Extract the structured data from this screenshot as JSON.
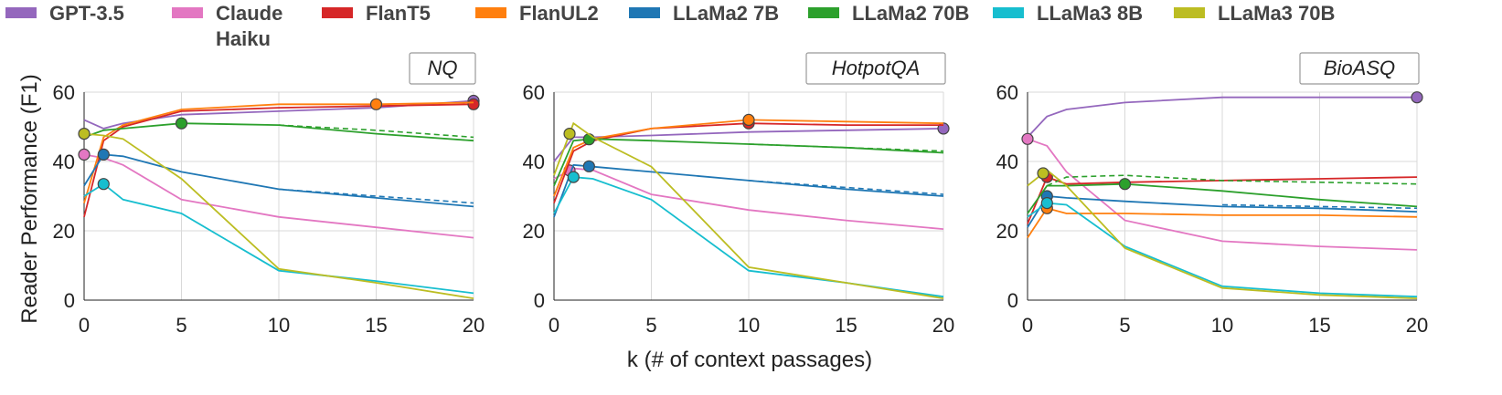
{
  "chart_data": {
    "type": "line",
    "xlabel": "k (# of context passages)",
    "ylabel": "Reader Performance (F1)",
    "xlim": [
      0,
      20
    ],
    "ylim": [
      0,
      60
    ],
    "xticks": [
      "0",
      "5",
      "10",
      "15",
      "20"
    ],
    "yticks": [
      "0",
      "20",
      "40",
      "60"
    ],
    "legend": [
      {
        "name": "GPT-3.5",
        "color": "#9467bd"
      },
      {
        "name": "Claude Haiku",
        "line1": "Claude",
        "line2": "Haiku",
        "color": "#e377c2"
      },
      {
        "name": "FlanT5",
        "color": "#d62728"
      },
      {
        "name": "FlanUL2",
        "color": "#ff7f0e"
      },
      {
        "name": "LLaMa2 7B",
        "color": "#1f77b4"
      },
      {
        "name": "LLaMa2 70B",
        "color": "#2ca02c"
      },
      {
        "name": "LLaMa3 8B",
        "color": "#17becf"
      },
      {
        "name": "LLaMa3 70B",
        "color": "#bcbd22"
      }
    ],
    "x": [
      0,
      1,
      2,
      5,
      10,
      15,
      20
    ],
    "panels": [
      {
        "title": "NQ",
        "series": [
          {
            "name": "GPT-3.5",
            "color": "#9467bd",
            "values": [
              52,
              49.5,
              51,
              53.5,
              54.5,
              55.5,
              57.5
            ],
            "marker_x": 20
          },
          {
            "name": "Claude Haiku",
            "color": "#e377c2",
            "values": [
              42,
              41,
              39,
              29,
              24,
              21,
              18
            ],
            "marker_x": 0
          },
          {
            "name": "FlanT5",
            "color": "#d62728",
            "values": [
              24,
              46,
              50,
              54.5,
              55.5,
              56,
              56.5
            ],
            "marker_x": 20
          },
          {
            "name": "FlanUL2",
            "color": "#ff7f0e",
            "values": [
              28,
              47,
              50.5,
              55,
              56.5,
              56.5,
              57
            ],
            "marker_x": 15
          },
          {
            "name": "LLaMa2 7B",
            "color": "#1f77b4",
            "values": [
              33,
              42,
              41.5,
              37,
              32,
              29.5,
              27
            ],
            "marker_x": 1,
            "dashed": [
              null,
              null,
              null,
              null,
              32,
              30,
              28
            ]
          },
          {
            "name": "LLaMa2 70B",
            "color": "#2ca02c",
            "values": [
              47,
              49,
              49.5,
              51,
              50.5,
              48,
              46
            ],
            "marker_x": 5,
            "dashed": [
              null,
              null,
              null,
              null,
              50.5,
              49,
              47
            ]
          },
          {
            "name": "LLaMa3 8B",
            "color": "#17becf",
            "values": [
              30,
              33.5,
              29,
              25,
              8.5,
              5.5,
              2
            ],
            "marker_x": 1
          },
          {
            "name": "LLaMa3 70B",
            "color": "#bcbd22",
            "values": [
              48,
              47.5,
              46.5,
              35,
              9,
              5,
              0.5
            ],
            "marker_x": 0
          }
        ]
      },
      {
        "title": "HotpotQA",
        "series": [
          {
            "name": "GPT-3.5",
            "color": "#9467bd",
            "values": [
              40,
              47,
              47,
              47.5,
              48.5,
              49,
              49.5
            ],
            "marker_x": 20
          },
          {
            "name": "Claude Haiku",
            "color": "#e377c2",
            "values": [
              35,
              38,
              37.5,
              30.5,
              26,
              23,
              20.5
            ],
            "marker_x": 0.8
          },
          {
            "name": "FlanT5",
            "color": "#d62728",
            "values": [
              28,
              43,
              46,
              49.5,
              51,
              50.5,
              50.5
            ],
            "marker_x": 10
          },
          {
            "name": "FlanUL2",
            "color": "#ff7f0e",
            "values": [
              30,
              44,
              46.5,
              49.5,
              52,
              51.5,
              51
            ],
            "marker_x": 10
          },
          {
            "name": "LLaMa2 7B",
            "color": "#1f77b4",
            "values": [
              24,
              39,
              38.5,
              37,
              34.5,
              32,
              30
            ],
            "marker_x": 1.8,
            "dashed": [
              null,
              null,
              null,
              null,
              34.5,
              32.5,
              30.5
            ]
          },
          {
            "name": "LLaMa2 70B",
            "color": "#2ca02c",
            "values": [
              33,
              46,
              46.5,
              46,
              45,
              44,
              42.5
            ],
            "marker_x": 1.8,
            "dashed": [
              null,
              null,
              null,
              null,
              45,
              44,
              43
            ]
          },
          {
            "name": "LLaMa3 8B",
            "color": "#17becf",
            "values": [
              25,
              35.5,
              35,
              29,
              8.5,
              5,
              1
            ],
            "marker_x": 1
          },
          {
            "name": "LLaMa3 70B",
            "color": "#bcbd22",
            "values": [
              36,
              51,
              47,
              38.5,
              9.5,
              5,
              0.5
            ],
            "marker_x": 0.8
          }
        ]
      },
      {
        "title": "BioASQ",
        "series": [
          {
            "name": "GPT-3.5",
            "color": "#9467bd",
            "values": [
              47,
              53,
              55,
              57,
              58.5,
              58.5,
              58.5
            ],
            "marker_x": 20
          },
          {
            "name": "Claude Haiku",
            "color": "#e377c2",
            "values": [
              46.5,
              44.5,
              37,
              23,
              17,
              15.5,
              14.5
            ],
            "marker_x": 0
          },
          {
            "name": "FlanT5",
            "color": "#d62728",
            "values": [
              22,
              35.5,
              33.5,
              34,
              34.5,
              35,
              35.5
            ],
            "marker_x": 1
          },
          {
            "name": "FlanUL2",
            "color": "#ff7f0e",
            "values": [
              18,
              26.5,
              25,
              25,
              24.5,
              24.5,
              24
            ],
            "marker_x": 1
          },
          {
            "name": "LLaMa2 7B",
            "color": "#1f77b4",
            "values": [
              21,
              30,
              29.5,
              28.5,
              27,
              26.5,
              25.5
            ],
            "marker_x": 1,
            "dashed": [
              null,
              null,
              null,
              null,
              27.5,
              27,
              26.5
            ]
          },
          {
            "name": "LLaMa2 70B",
            "color": "#2ca02c",
            "values": [
              25,
              33,
              33,
              33.5,
              31.5,
              29,
              27
            ],
            "marker_x": 5,
            "dashed": [
              null,
              33,
              35.5,
              36,
              34.5,
              34,
              33.5
            ]
          },
          {
            "name": "LLaMa3 8B",
            "color": "#17becf",
            "values": [
              24,
              28,
              27.5,
              15.5,
              4,
              2,
              1
            ],
            "marker_x": 1
          },
          {
            "name": "LLaMa3 70B",
            "color": "#bcbd22",
            "values": [
              33,
              37.5,
              33,
              15,
              3.5,
              1.5,
              0.5
            ],
            "marker_x": 0.8
          }
        ]
      }
    ]
  }
}
